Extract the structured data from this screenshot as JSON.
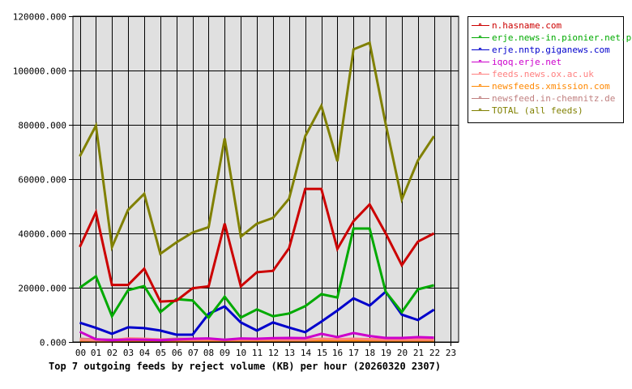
{
  "chart_data": {
    "type": "line",
    "title": "Top 7 outgoing feeds by reject volume (KB) per hour (20260320 2307)",
    "xlabel": "",
    "ylabel": "",
    "ylim": [
      0,
      120000
    ],
    "grid": true,
    "legend_position": "right",
    "x": [
      "00",
      "01",
      "02",
      "03",
      "04",
      "05",
      "06",
      "07",
      "08",
      "09",
      "10",
      "11",
      "12",
      "13",
      "14",
      "15",
      "16",
      "17",
      "18",
      "19",
      "20",
      "21",
      "22",
      "23"
    ],
    "y_ticks": [
      "0.000",
      "20000.000",
      "40000.000",
      "60000.000",
      "80000.000",
      "100000.000",
      "120000.000"
    ],
    "y_tick_values": [
      0,
      20000,
      40000,
      60000,
      80000,
      100000,
      120000
    ],
    "series": [
      {
        "name": "n.hasname.com",
        "color": "#cc0000",
        "values": [
          35000,
          47800,
          21000,
          21000,
          27000,
          14900,
          15200,
          19800,
          20500,
          43600,
          20500,
          25700,
          26200,
          34600,
          56400,
          56400,
          34300,
          44500,
          50700,
          40000,
          28300,
          37000,
          40000
        ]
      },
      {
        "name": "erje.news-in.pionier.net.pl",
        "color": "#00aa00",
        "values": [
          20000,
          24200,
          9500,
          19100,
          20600,
          11000,
          15800,
          15300,
          9000,
          16700,
          9000,
          12000,
          9500,
          10500,
          13200,
          17600,
          16400,
          41800,
          41800,
          18500,
          11000,
          19400,
          20900
        ]
      },
      {
        "name": "erje.nntp.giganews.com",
        "color": "#0000cc",
        "values": [
          7100,
          5200,
          3000,
          5400,
          5100,
          4200,
          2700,
          2700,
          10400,
          13100,
          7200,
          4200,
          7200,
          5300,
          3600,
          7500,
          11600,
          16100,
          13400,
          18500,
          10100,
          8100,
          11900
        ]
      },
      {
        "name": "iqoq.erje.net",
        "color": "#cc00cc",
        "values": [
          3800,
          1000,
          700,
          900,
          800,
          700,
          900,
          1200,
          1300,
          800,
          1300,
          1200,
          1400,
          1500,
          1400,
          3000,
          1800,
          3300,
          2200,
          1500,
          1500,
          1800,
          1600
        ]
      },
      {
        "name": "feeds.news.ox.ac.uk",
        "color": "#ff8080",
        "values": [
          900,
          700,
          700,
          1300,
          1200,
          900,
          900,
          800,
          900,
          800,
          900,
          900,
          900,
          800,
          800,
          1200,
          1000,
          1200,
          1000,
          900,
          900,
          900,
          900
        ]
      },
      {
        "name": "newsfeeds.xmission.com",
        "color": "#ff8800",
        "values": [
          400,
          200,
          200,
          300,
          300,
          300,
          200,
          300,
          300,
          300,
          300,
          300,
          300,
          300,
          300,
          400,
          300,
          300,
          300,
          300,
          300,
          300,
          300
        ]
      },
      {
        "name": "newsfeed.in-chemnitz.de",
        "color": "#c08080",
        "values": [
          1200,
          900,
          900,
          1000,
          1000,
          900,
          1200,
          1100,
          1000,
          800,
          1000,
          1000,
          1000,
          1000,
          1000,
          1000,
          1000,
          1000,
          1000,
          1000,
          1000,
          1000,
          1000
        ]
      },
      {
        "name": "TOTAL (all feeds)",
        "color": "#808000",
        "values": [
          68400,
          79700,
          35000,
          48700,
          54600,
          32500,
          36700,
          40300,
          42300,
          75000,
          38800,
          43600,
          45700,
          52800,
          75800,
          87000,
          66600,
          107800,
          110200,
          80300,
          52500,
          66900,
          75800
        ]
      }
    ]
  },
  "legend": {
    "items": [
      {
        "label": "n.hasname.com",
        "color": "#cc0000"
      },
      {
        "label": "erje.news-in.pionier.net.pl",
        "color": "#00aa00"
      },
      {
        "label": "erje.nntp.giganews.com",
        "color": "#0000cc"
      },
      {
        "label": "iqoq.erje.net",
        "color": "#cc00cc"
      },
      {
        "label": "feeds.news.ox.ac.uk",
        "color": "#ff8080"
      },
      {
        "label": "newsfeeds.xmission.com",
        "color": "#ff8800"
      },
      {
        "label": "newsfeed.in-chemnitz.de",
        "color": "#c08080"
      },
      {
        "label": "TOTAL (all feeds)",
        "color": "#808000"
      }
    ]
  },
  "colors": {
    "plot_background": "#e0e0e0",
    "grid": "#000000",
    "page_background": "#ffffff"
  }
}
